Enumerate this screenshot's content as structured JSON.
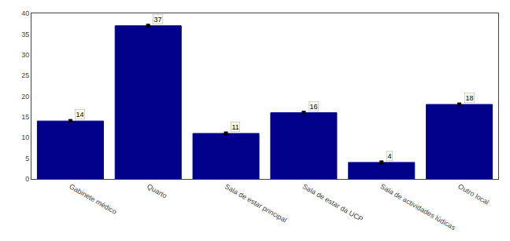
{
  "chart_data": {
    "type": "bar",
    "categories": [
      "Gabinete médico",
      "Quarto",
      "Sala de estar principal",
      "Sala de estar da UCP",
      "Sala de actividades lúdicas",
      "Outro local"
    ],
    "values": [
      14,
      37,
      11,
      16,
      4,
      18
    ],
    "color": "#00008B",
    "ylim": [
      0,
      40
    ],
    "yticks": [
      0,
      5,
      10,
      15,
      20,
      25,
      30,
      35,
      40
    ],
    "grid": false,
    "data_labels": true,
    "marker": "square"
  }
}
